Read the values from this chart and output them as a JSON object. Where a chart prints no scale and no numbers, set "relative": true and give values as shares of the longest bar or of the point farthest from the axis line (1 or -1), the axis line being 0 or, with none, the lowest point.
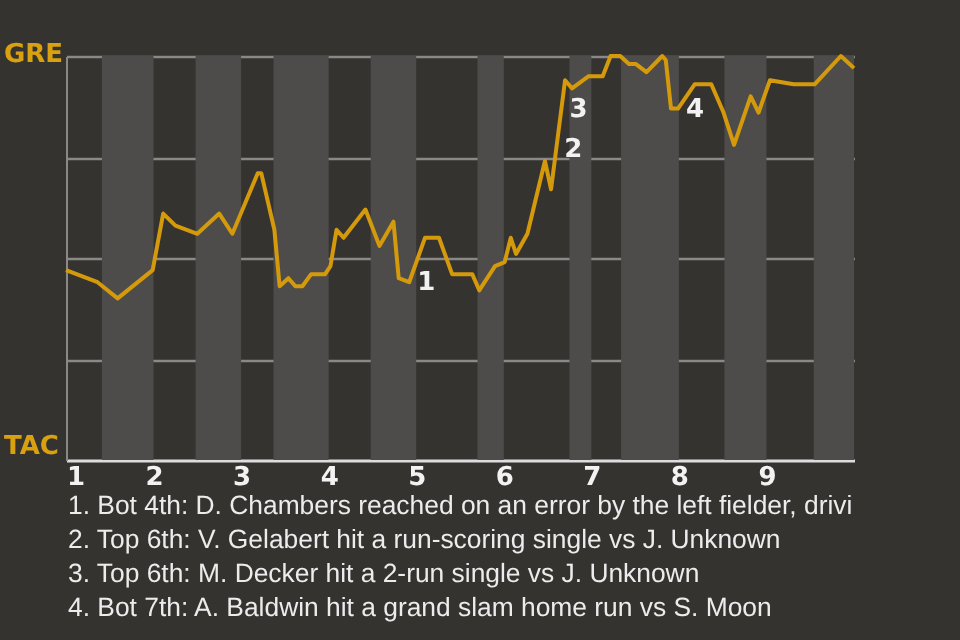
{
  "chart_data": {
    "type": "line",
    "relative": true,
    "x": [
      1,
      1.36,
      1.59,
      1.99,
      2.11,
      2.25,
      2.5,
      2.75,
      2.9,
      3.19,
      3.23,
      3.38,
      3.44,
      3.54,
      3.62,
      3.7,
      3.8,
      3.96,
      4.02,
      4.09,
      4.17,
      4.42,
      4.58,
      4.74,
      4.8,
      4.92,
      5.1,
      5.26,
      5.41,
      5.64,
      5.72,
      5.9,
      6.01,
      6.08,
      6.14,
      6.27,
      6.47,
      6.54,
      6.7,
      6.78,
      6.97,
      7.13,
      7.22,
      7.33,
      7.43,
      7.51,
      7.63,
      7.81,
      7.85,
      7.91,
      7.99,
      8.18,
      8.37,
      8.51,
      8.63,
      8.82,
      8.91,
      9.04,
      9.31,
      9.55,
      9.85,
      10
    ],
    "series": [
      {
        "color": "#d49a0c",
        "values": [
          0.47,
          0.44,
          0.4,
          0.47,
          0.61,
          0.58,
          0.56,
          0.61,
          0.56,
          0.71,
          0.71,
          0.57,
          0.43,
          0.45,
          0.43,
          0.43,
          0.46,
          0.46,
          0.48,
          0.57,
          0.55,
          0.62,
          0.53,
          0.59,
          0.45,
          0.44,
          0.55,
          0.55,
          0.46,
          0.46,
          0.42,
          0.48,
          0.49,
          0.55,
          0.51,
          0.56,
          0.74,
          0.67,
          0.94,
          0.92,
          0.95,
          0.95,
          1,
          1,
          0.98,
          0.98,
          0.96,
          1,
          0.99,
          0.87,
          0.87,
          0.93,
          0.93,
          0.86,
          0.78,
          0.9,
          0.86,
          0.94,
          0.93,
          0.93,
          1,
          0.97
        ]
      }
    ],
    "xlim": [
      1,
      10
    ],
    "xticks": [
      1,
      2,
      3,
      4,
      5,
      6,
      7,
      8,
      9
    ],
    "grid": "y",
    "bands": [
      {
        "axis": "x",
        "from": 1.41,
        "to": 2,
        "color": "#4d4c4a"
      },
      {
        "axis": "x",
        "from": 2.48,
        "to": 3,
        "color": "#4d4c4a"
      },
      {
        "axis": "x",
        "from": 3.37,
        "to": 4,
        "color": "#4d4c4a"
      },
      {
        "axis": "x",
        "from": 4.48,
        "to": 5,
        "color": "#4d4c4a"
      },
      {
        "axis": "x",
        "from": 5.7,
        "to": 6,
        "color": "#4d4c4a"
      },
      {
        "axis": "x",
        "from": 6.75,
        "to": 7,
        "color": "#4d4c4a"
      },
      {
        "axis": "x",
        "from": 7.34,
        "to": 8,
        "color": "#4d4c4a"
      },
      {
        "axis": "x",
        "from": 8.52,
        "to": 9,
        "color": "#4d4c4a"
      },
      {
        "axis": "x",
        "from": 9.54,
        "to": 10,
        "color": "#4d4c4a"
      }
    ],
    "annotations": [
      "GRE",
      "TAC",
      {
        "text": "1",
        "x": 4.92,
        "y": 0.44
      },
      {
        "text": "2",
        "x": 6.6,
        "y": 0.77
      },
      {
        "text": "3",
        "x": 6.66,
        "y": 0.87
      },
      {
        "text": "4",
        "x": 7.99,
        "y": 0.87
      },
      "1. Bot 4th: D. Chambers reached on an error by the left fielder, drivi",
      "2. Top 6th: V. Gelabert hit a run-scoring single vs J. Unknown",
      "3. Top 6th: M. Decker hit a 2-run single vs J. Unknown",
      "4. Bot 7th: A. Baldwin hit a grand slam home run vs S. Moon"
    ]
  }
}
